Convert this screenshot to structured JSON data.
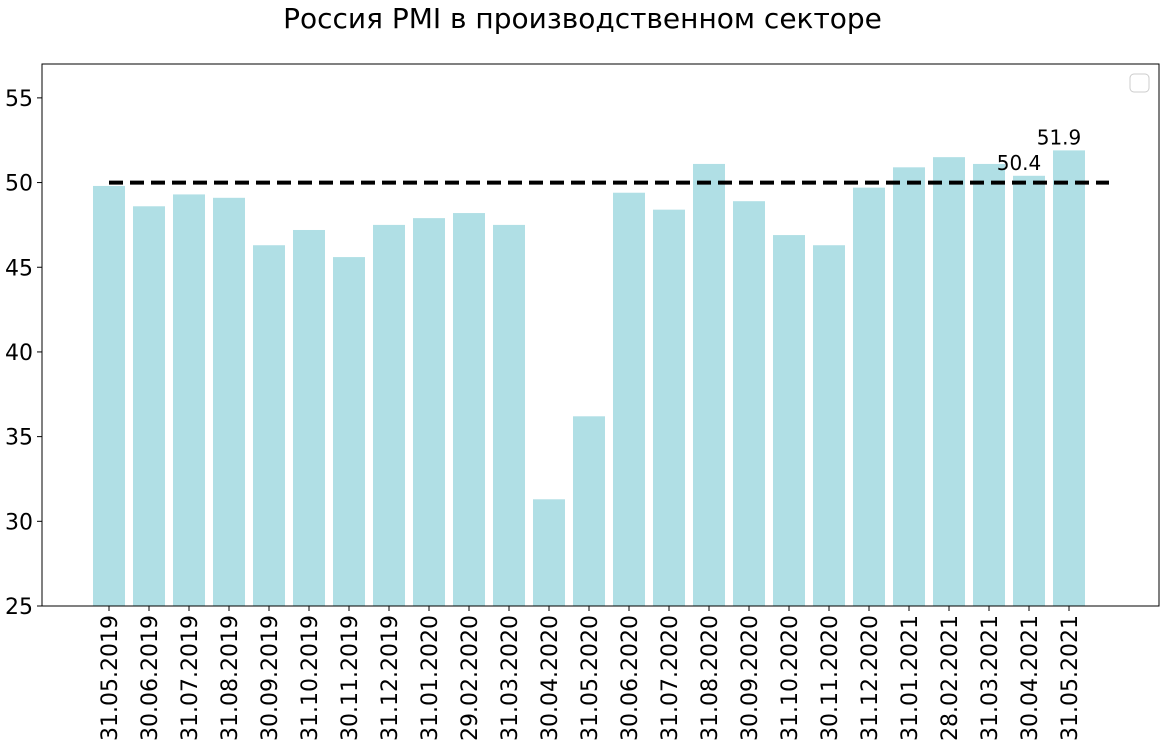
{
  "chart_data": {
    "type": "bar",
    "title": "Россия PMI в производственном секторе",
    "xlabel": "",
    "ylabel": "",
    "categories": [
      "31.05.2019",
      "30.06.2019",
      "31.07.2019",
      "31.08.2019",
      "30.09.2019",
      "31.10.2019",
      "30.11.2019",
      "31.12.2019",
      "31.01.2020",
      "29.02.2020",
      "31.03.2020",
      "30.04.2020",
      "31.05.2020",
      "30.06.2020",
      "31.07.2020",
      "31.08.2020",
      "30.09.2020",
      "31.10.2020",
      "30.11.2020",
      "31.12.2020",
      "31.01.2021",
      "28.02.2021",
      "31.03.2021",
      "30.04.2021",
      "31.05.2021"
    ],
    "values": [
      49.8,
      48.6,
      49.3,
      49.1,
      46.3,
      47.2,
      45.6,
      47.5,
      47.9,
      48.2,
      47.5,
      31.3,
      36.2,
      49.4,
      48.4,
      51.1,
      48.9,
      46.9,
      46.3,
      49.7,
      50.9,
      51.5,
      51.1,
      50.4,
      51.9
    ],
    "ylim": [
      25,
      57
    ],
    "yticks": [
      25,
      30,
      35,
      40,
      45,
      50,
      55
    ],
    "reference_line": {
      "value": 50,
      "style": "dashed",
      "color": "#000000"
    },
    "data_labels": [
      {
        "category": "30.04.2021",
        "text": "50.4"
      },
      {
        "category": "31.05.2021",
        "text": "51.9"
      }
    ],
    "bar_color": "#b0dfe5",
    "grid": false,
    "legend": {
      "position": "top-right",
      "entries": []
    }
  }
}
